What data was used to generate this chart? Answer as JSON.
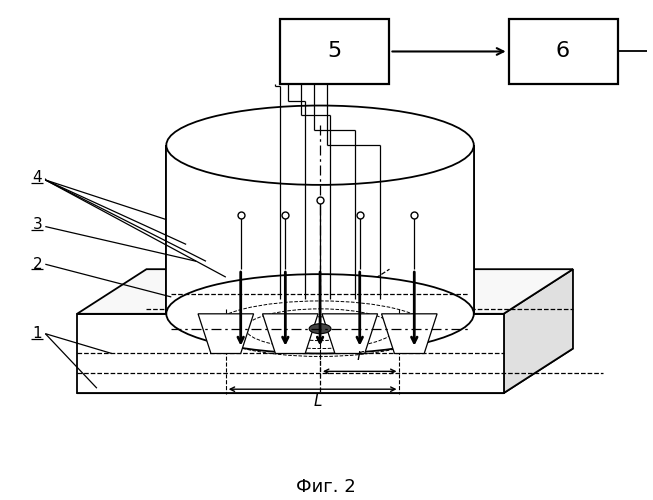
{
  "bg_color": "#ffffff",
  "figcaption": "Фиг. 2",
  "label1": "1",
  "label2": "2",
  "label3": "3",
  "label4": "4",
  "label_r": "r",
  "label_L": "L",
  "box5_label": "5",
  "box6_label": "6"
}
